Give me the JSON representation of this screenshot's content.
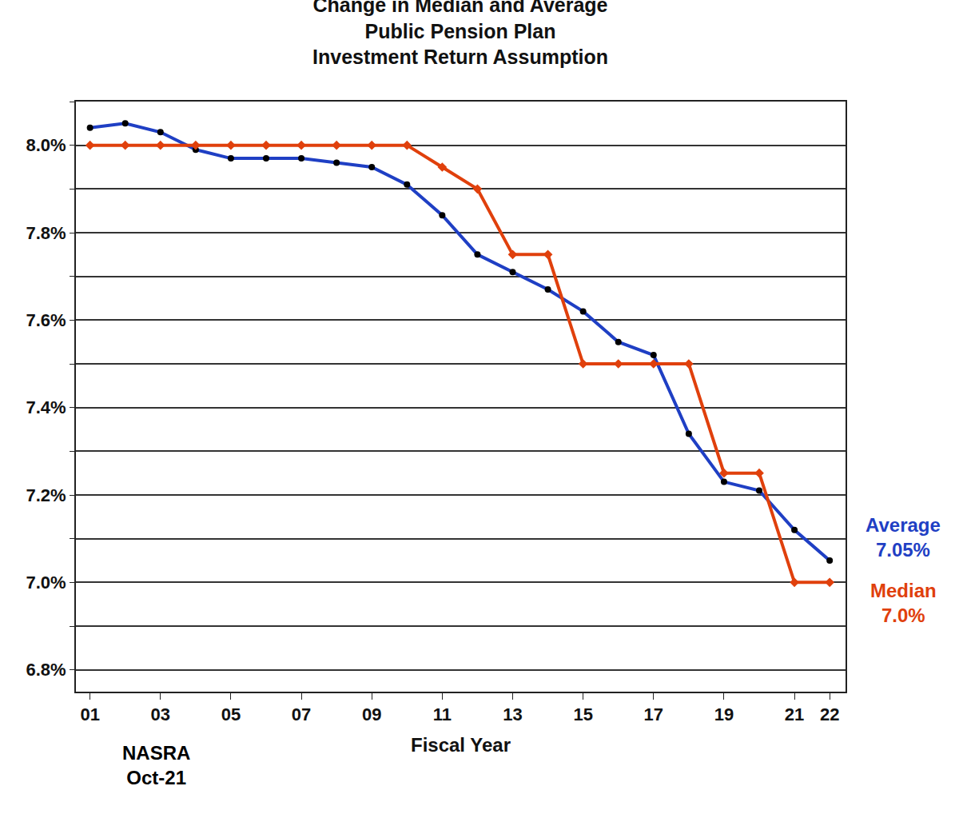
{
  "chart_data": {
    "type": "line",
    "title": "Change in Median and Average\nPublic Pension Plan\nInvestment Return Assumption",
    "x_label": "Fiscal Year",
    "x": [
      1,
      2,
      3,
      4,
      5,
      6,
      7,
      8,
      9,
      10,
      11,
      12,
      13,
      14,
      15,
      16,
      17,
      18,
      19,
      20,
      21,
      22
    ],
    "series": [
      {
        "name": "Average",
        "color": "#1f3fc4",
        "marker": "circle",
        "values": [
          8.04,
          8.05,
          8.03,
          7.99,
          7.97,
          7.97,
          7.97,
          7.96,
          7.95,
          7.91,
          7.84,
          7.75,
          7.71,
          7.67,
          7.62,
          7.55,
          7.52,
          7.34,
          7.23,
          7.21,
          7.12,
          7.05
        ]
      },
      {
        "name": "Median",
        "color": "#e0400c",
        "marker": "diamond",
        "values": [
          8.0,
          8.0,
          8.0,
          8.0,
          8.0,
          8.0,
          8.0,
          8.0,
          8.0,
          8.0,
          7.95,
          7.9,
          7.75,
          7.75,
          7.5,
          7.5,
          7.5,
          7.5,
          7.25,
          7.25,
          7.0,
          7.0
        ]
      }
    ],
    "xlim": [
      0.6,
      22.45
    ],
    "xticks": [
      {
        "value": 1,
        "label": "01"
      },
      {
        "value": 3,
        "label": "03"
      },
      {
        "value": 5,
        "label": "05"
      },
      {
        "value": 7,
        "label": "07"
      },
      {
        "value": 9,
        "label": "09"
      },
      11,
      13,
      15,
      17,
      19,
      21,
      22
    ],
    "ylim": [
      6.75,
      8.1
    ],
    "yticks": [
      {
        "value": 6.8,
        "label": "6.8%"
      },
      {
        "value": 7.0,
        "label": "7.0%"
      },
      {
        "value": 7.2,
        "label": "7.2%"
      },
      {
        "value": 7.4,
        "label": "7.4%"
      },
      {
        "value": 7.6,
        "label": "7.6%"
      },
      {
        "value": 7.8,
        "label": "7.8%"
      },
      {
        "value": 8.0,
        "label": "8.0%"
      }
    ],
    "grid": true,
    "annotations": [
      "Average\n7.05%",
      "Median\n7.0%",
      "NASRA\nOct-21"
    ]
  }
}
